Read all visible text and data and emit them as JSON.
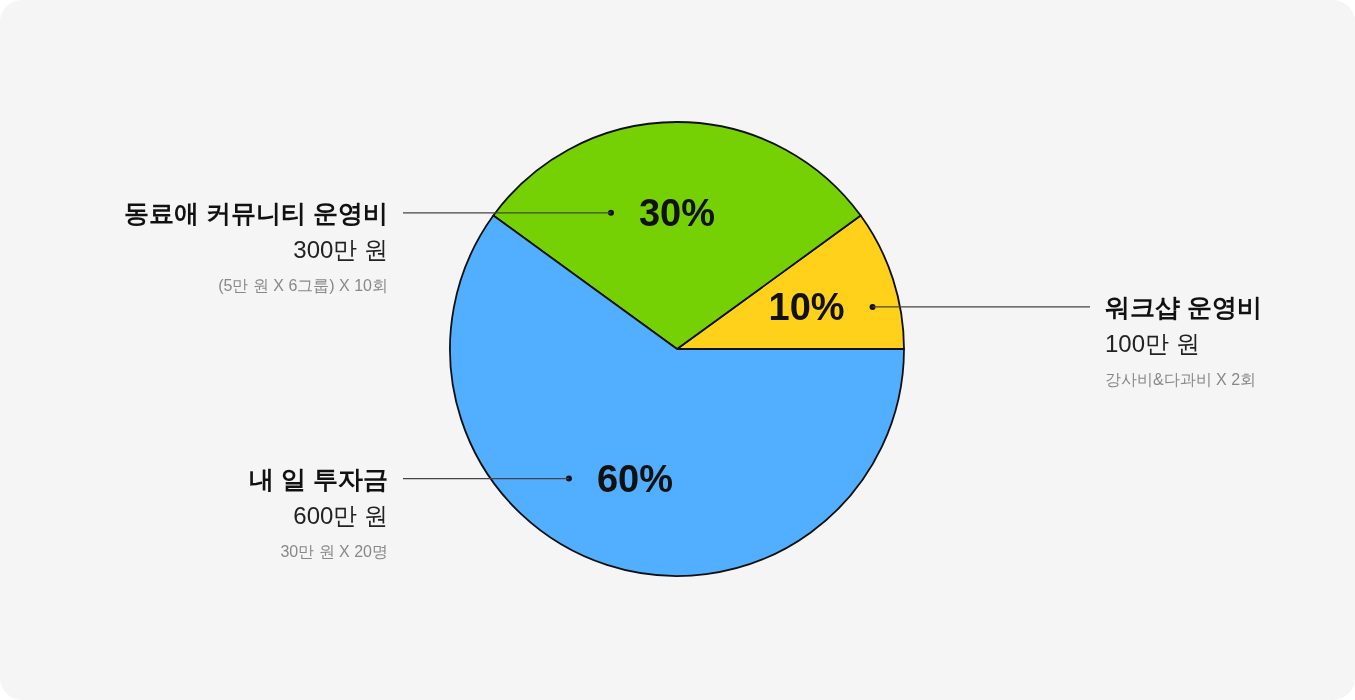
{
  "chart_data": {
    "type": "pie",
    "categories": [
      "워크샵 운영비",
      "동료애 커뮤니티 운영비",
      "내 일 투자금"
    ],
    "values": [
      10,
      30,
      60
    ],
    "colors": [
      "#ffd11a",
      "#76d104",
      "#52aeff"
    ],
    "value_labels": [
      "10%",
      "30%",
      "60%"
    ],
    "annotations": [
      "100만 원",
      "강사비&다과비 X 2회",
      "300만 원",
      "(5만 원 X 6그룹) X 10회",
      "600만 원",
      "30만 원 X 20명"
    ]
  }
}
